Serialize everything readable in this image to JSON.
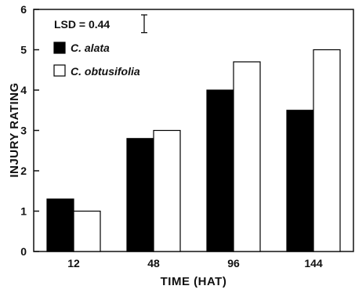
{
  "chart_data": {
    "type": "bar",
    "categories": [
      "12",
      "48",
      "96",
      "144"
    ],
    "series": [
      {
        "name": "C. alata",
        "values": [
          1.3,
          2.8,
          4.0,
          3.5
        ],
        "color": "#000000"
      },
      {
        "name": "C. obtusifolia",
        "values": [
          1.0,
          3.0,
          4.7,
          5.0
        ],
        "color": "#ffffff"
      }
    ],
    "xlabel": "TIME (HAT)",
    "ylabel": "INJURY RATING",
    "ylim": [
      0,
      6
    ],
    "yticks": [
      "0",
      "1",
      "2",
      "3",
      "4",
      "5",
      "6"
    ],
    "lsd_label": "LSD = 0.44",
    "lsd_value": 0.44,
    "grid": false,
    "legend_position": "top-left"
  }
}
